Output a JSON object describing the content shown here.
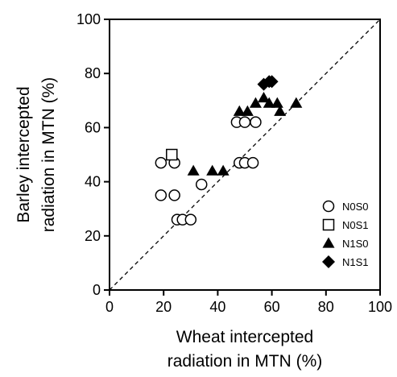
{
  "chart_data": {
    "type": "scatter",
    "title": "",
    "xlabel": [
      "Wheat intercepted",
      "radiation in MTN (%)"
    ],
    "ylabel": [
      "Barley intercepted",
      "radiation in MTN (%)"
    ],
    "xlim": [
      0,
      100
    ],
    "ylim": [
      0,
      100
    ],
    "xticks": [
      "0",
      "20",
      "40",
      "60",
      "80",
      "100"
    ],
    "yticks": [
      "0",
      "20",
      "40",
      "60",
      "80",
      "100"
    ],
    "grid": false,
    "legend_position": "lower-right",
    "reference_line": {
      "type": "1:1",
      "style": "dashed"
    },
    "series": [
      {
        "name": "N0S0",
        "marker": "open-circle",
        "points": [
          [
            19,
            47
          ],
          [
            24,
            47
          ],
          [
            19,
            35
          ],
          [
            24,
            35
          ],
          [
            25,
            26
          ],
          [
            27,
            26
          ],
          [
            30,
            26
          ],
          [
            34,
            39
          ],
          [
            47,
            62
          ],
          [
            50,
            62
          ],
          [
            54,
            62
          ],
          [
            48,
            47
          ],
          [
            50,
            47
          ],
          [
            53,
            47
          ]
        ]
      },
      {
        "name": "N0S1",
        "marker": "open-square",
        "points": [
          [
            23,
            50
          ]
        ]
      },
      {
        "name": "N1S0",
        "marker": "filled-triangle",
        "points": [
          [
            31,
            44
          ],
          [
            38,
            44
          ],
          [
            42,
            44
          ],
          [
            48,
            66
          ],
          [
            51,
            66
          ],
          [
            54,
            69
          ],
          [
            57,
            71
          ],
          [
            59,
            69
          ],
          [
            62,
            69
          ],
          [
            63,
            66
          ],
          [
            69,
            69
          ]
        ]
      },
      {
        "name": "N1S1",
        "marker": "filled-diamond",
        "points": [
          [
            57,
            76
          ],
          [
            59,
            77
          ],
          [
            60,
            77
          ]
        ]
      }
    ]
  }
}
